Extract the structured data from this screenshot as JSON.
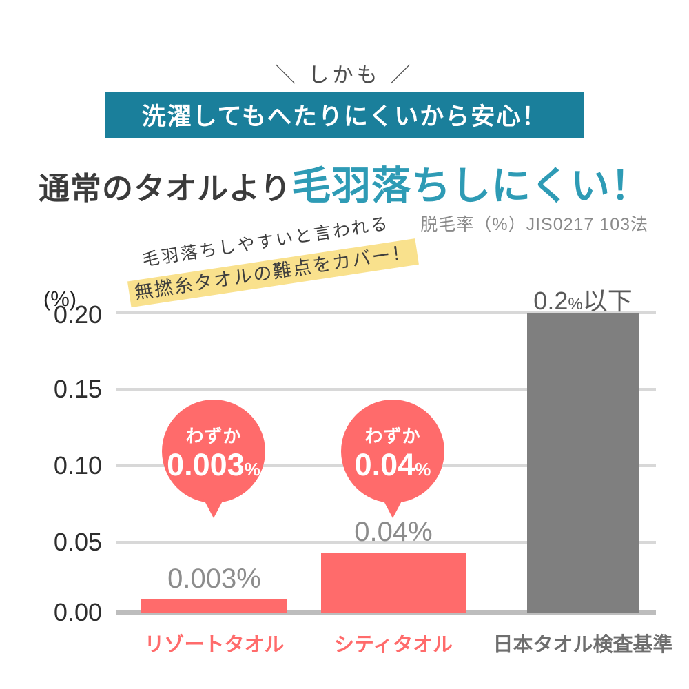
{
  "header": {
    "kicker": "＼ しかも ／",
    "banner": "洗濯してもへたりにくいから安心！",
    "title_normal": "通常のタオルより",
    "title_accent": "毛羽落ちしにくい！",
    "method": "脱毛率（%）JIS0217 103法"
  },
  "note": {
    "line1": "毛羽落ちしやすいと言われる",
    "line2": "無撚糸タオルの難点をカバー！"
  },
  "chart_data": {
    "type": "bar",
    "title": "脱毛率（%）JIS0217 103法",
    "ylabel": "(%)",
    "xlabel": "",
    "ylim": [
      0,
      0.2
    ],
    "grid": true,
    "legend_position": "none",
    "yticks": [
      0.2,
      0.15,
      0.1,
      0.05,
      0.0
    ],
    "ytick_labels": [
      "0.20",
      "0.15",
      "0.10",
      "0.05",
      "0.00"
    ],
    "categories": [
      "リゾートタオル",
      "シティタオル",
      "日本タオル検査基準"
    ],
    "values": [
      0.003,
      0.04,
      0.2
    ],
    "bars": [
      {
        "category": "リゾートタオル",
        "value": 0.003,
        "label": "0.003%",
        "label_small": "",
        "label_suffix": "",
        "color": "#FF6B6B",
        "label_color": "#8C8C8C",
        "category_color": "#FF6B6B"
      },
      {
        "category": "シティタオル",
        "value": 0.04,
        "label": "0.04%",
        "label_small": "",
        "label_suffix": "",
        "color": "#FF6B6B",
        "label_color": "#8C8C8C",
        "category_color": "#FF6B6B"
      },
      {
        "category": "日本タオル検査基準",
        "value": 0.2,
        "label": "0.2",
        "label_small": "%",
        "label_suffix": "以下",
        "color": "#7F7F7F",
        "label_color": "#595959",
        "category_color": "#6E6E6E"
      }
    ],
    "callouts": [
      {
        "lead": "わずか",
        "number": "0.003",
        "unit": "%"
      },
      {
        "lead": "わずか",
        "number": "0.04",
        "unit": "%"
      }
    ]
  },
  "colors": {
    "teal": "#1A7F9B",
    "teal-text": "#2E9BB5",
    "coral": "#FF6B6B",
    "bar-gray": "#7F7F7F",
    "grid": "#D8D8D8",
    "axis": "#BDBDBD",
    "highlight": "#F9E18D",
    "text-dark": "#3B3B3B",
    "text-gray": "#8A8A8A",
    "value-gray": "#8C8C8C",
    "standard-gray": "#595959",
    "category-gray": "#6E6E6E",
    "kicker-gray": "#4D4D4D",
    "note-ink": "#3E3E3E",
    "tick-ink": "#2E2E2E"
  }
}
